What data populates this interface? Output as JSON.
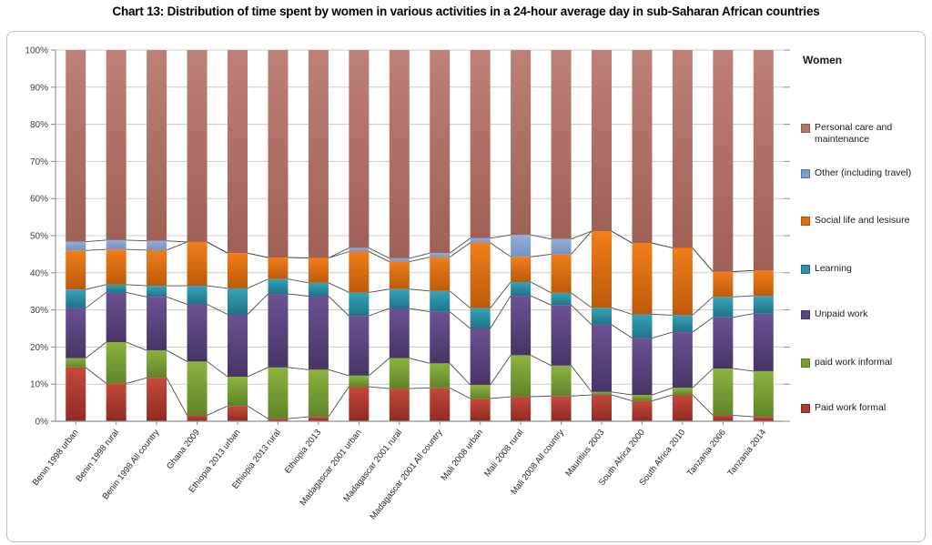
{
  "title": "Chart 13: Distribution of time spent by women in various activities in a 24-hour average day in sub-Saharan African countries",
  "legend": {
    "title": "Women",
    "entries_top_to_bottom": [
      "Personal care and maintenance",
      "Other (including travel)",
      "Social life and lesisure",
      "Learning",
      "Unpaid work",
      "paid work informal",
      "Paid work formal"
    ]
  },
  "axes": {
    "y_tick_labels": [
      "0%",
      "10%",
      "20%",
      "30%",
      "40%",
      "50%",
      "60%",
      "70%",
      "80%",
      "90%",
      "100%"
    ],
    "y_unit": "percent"
  },
  "chart_data": {
    "type": "bar",
    "stacked": true,
    "units": "% of 24-hour day",
    "title": "Women",
    "ylim": [
      0,
      100
    ],
    "y_tick_step": 10,
    "grid": true,
    "legend_position": "right",
    "connector_lines": true,
    "categories": [
      "Benin 1998 urban",
      "Benin 1998 rural",
      "Benin 1998 All country",
      "Ghana 2009",
      "Ethiopia 2013 urban",
      "Ethiopia 2013 rural",
      "Ethiopia 2013",
      "Madagascar 2001 urban",
      "Madagascar 2001 rural",
      "Madagascar 2001 All country",
      "Mali 2008 urban",
      "Mali 2008 rural",
      "Mali 2008 All country",
      "Mauritius 2003",
      "South Africa 2000",
      "South Africa 2010",
      "Tanzania 2006",
      "Tanzania 2014"
    ],
    "series": [
      {
        "name": "Paid work formal",
        "color": "#AE3B31",
        "gradient": [
          "#C5493C",
          "#8F2B22"
        ],
        "values": [
          14.5,
          10.2,
          11.7,
          1.6,
          4.1,
          0.7,
          1.2,
          9.3,
          8.8,
          9.0,
          6.1,
          6.6,
          6.8,
          7.1,
          5.5,
          7.1,
          1.6,
          1.2
        ]
      },
      {
        "name": "paid work informal",
        "color": "#76A032",
        "gradient": [
          "#8CB33F",
          "#5F8429"
        ],
        "values": [
          2.5,
          11.1,
          7.4,
          14.5,
          7.9,
          13.8,
          12.7,
          3.0,
          8.2,
          6.6,
          3.7,
          11.2,
          8.2,
          0.8,
          1.6,
          1.9,
          12.6,
          12.3
        ]
      },
      {
        "name": "Unpaid work",
        "color": "#5C4484",
        "gradient": [
          "#6C5294",
          "#473465"
        ],
        "values": [
          13.5,
          13.4,
          14.4,
          15.4,
          16.8,
          19.8,
          19.8,
          16.1,
          13.4,
          13.9,
          15.2,
          16.0,
          16.3,
          18.1,
          15.3,
          15.0,
          13.8,
          15.5
        ]
      },
      {
        "name": "Learning",
        "color": "#2E8FA6",
        "gradient": [
          "#39A3B9",
          "#1F7385"
        ],
        "values": [
          5.0,
          2.1,
          3.0,
          5.0,
          7.0,
          4.0,
          3.6,
          6.3,
          5.2,
          5.6,
          5.5,
          3.7,
          3.3,
          4.6,
          6.4,
          4.6,
          5.5,
          4.8
        ]
      },
      {
        "name": "Social life and lesisure",
        "color": "#E06D0E",
        "gradient": [
          "#F07E1A",
          "#BC5A0A"
        ],
        "values": [
          10.5,
          9.5,
          9.6,
          11.8,
          9.5,
          5.8,
          6.7,
          11.0,
          7.4,
          9.1,
          17.6,
          6.8,
          10.4,
          20.6,
          19.2,
          18.1,
          6.8,
          6.8
        ]
      },
      {
        "name": "Other (including travel)",
        "color": "#7E9DCB",
        "gradient": [
          "#93AED8",
          "#7393C2"
        ],
        "values": [
          2.4,
          2.5,
          2.5,
          0,
          0,
          0,
          0,
          1.0,
          0.9,
          1.1,
          1.2,
          5.9,
          4.1,
          0,
          0,
          0,
          0,
          0
        ]
      },
      {
        "name": "Personal care and maintenance",
        "color": "#B3766C",
        "gradient": [
          "#BE8177",
          "#9F6055"
        ],
        "values": [
          51.6,
          51.2,
          51.4,
          51.7,
          54.7,
          55.9,
          56.0,
          53.3,
          56.1,
          54.7,
          50.7,
          49.8,
          50.9,
          48.8,
          52.0,
          53.3,
          59.7,
          59.4
        ]
      }
    ]
  },
  "style_colors": {
    "gridline": "#CCCCCC",
    "axis_line": "#8C8C8C",
    "connector_line": "#4D4D4D",
    "tick_label": "#3F3F3F",
    "category_label": "#262626",
    "chart_border": "#BDBDBD"
  }
}
